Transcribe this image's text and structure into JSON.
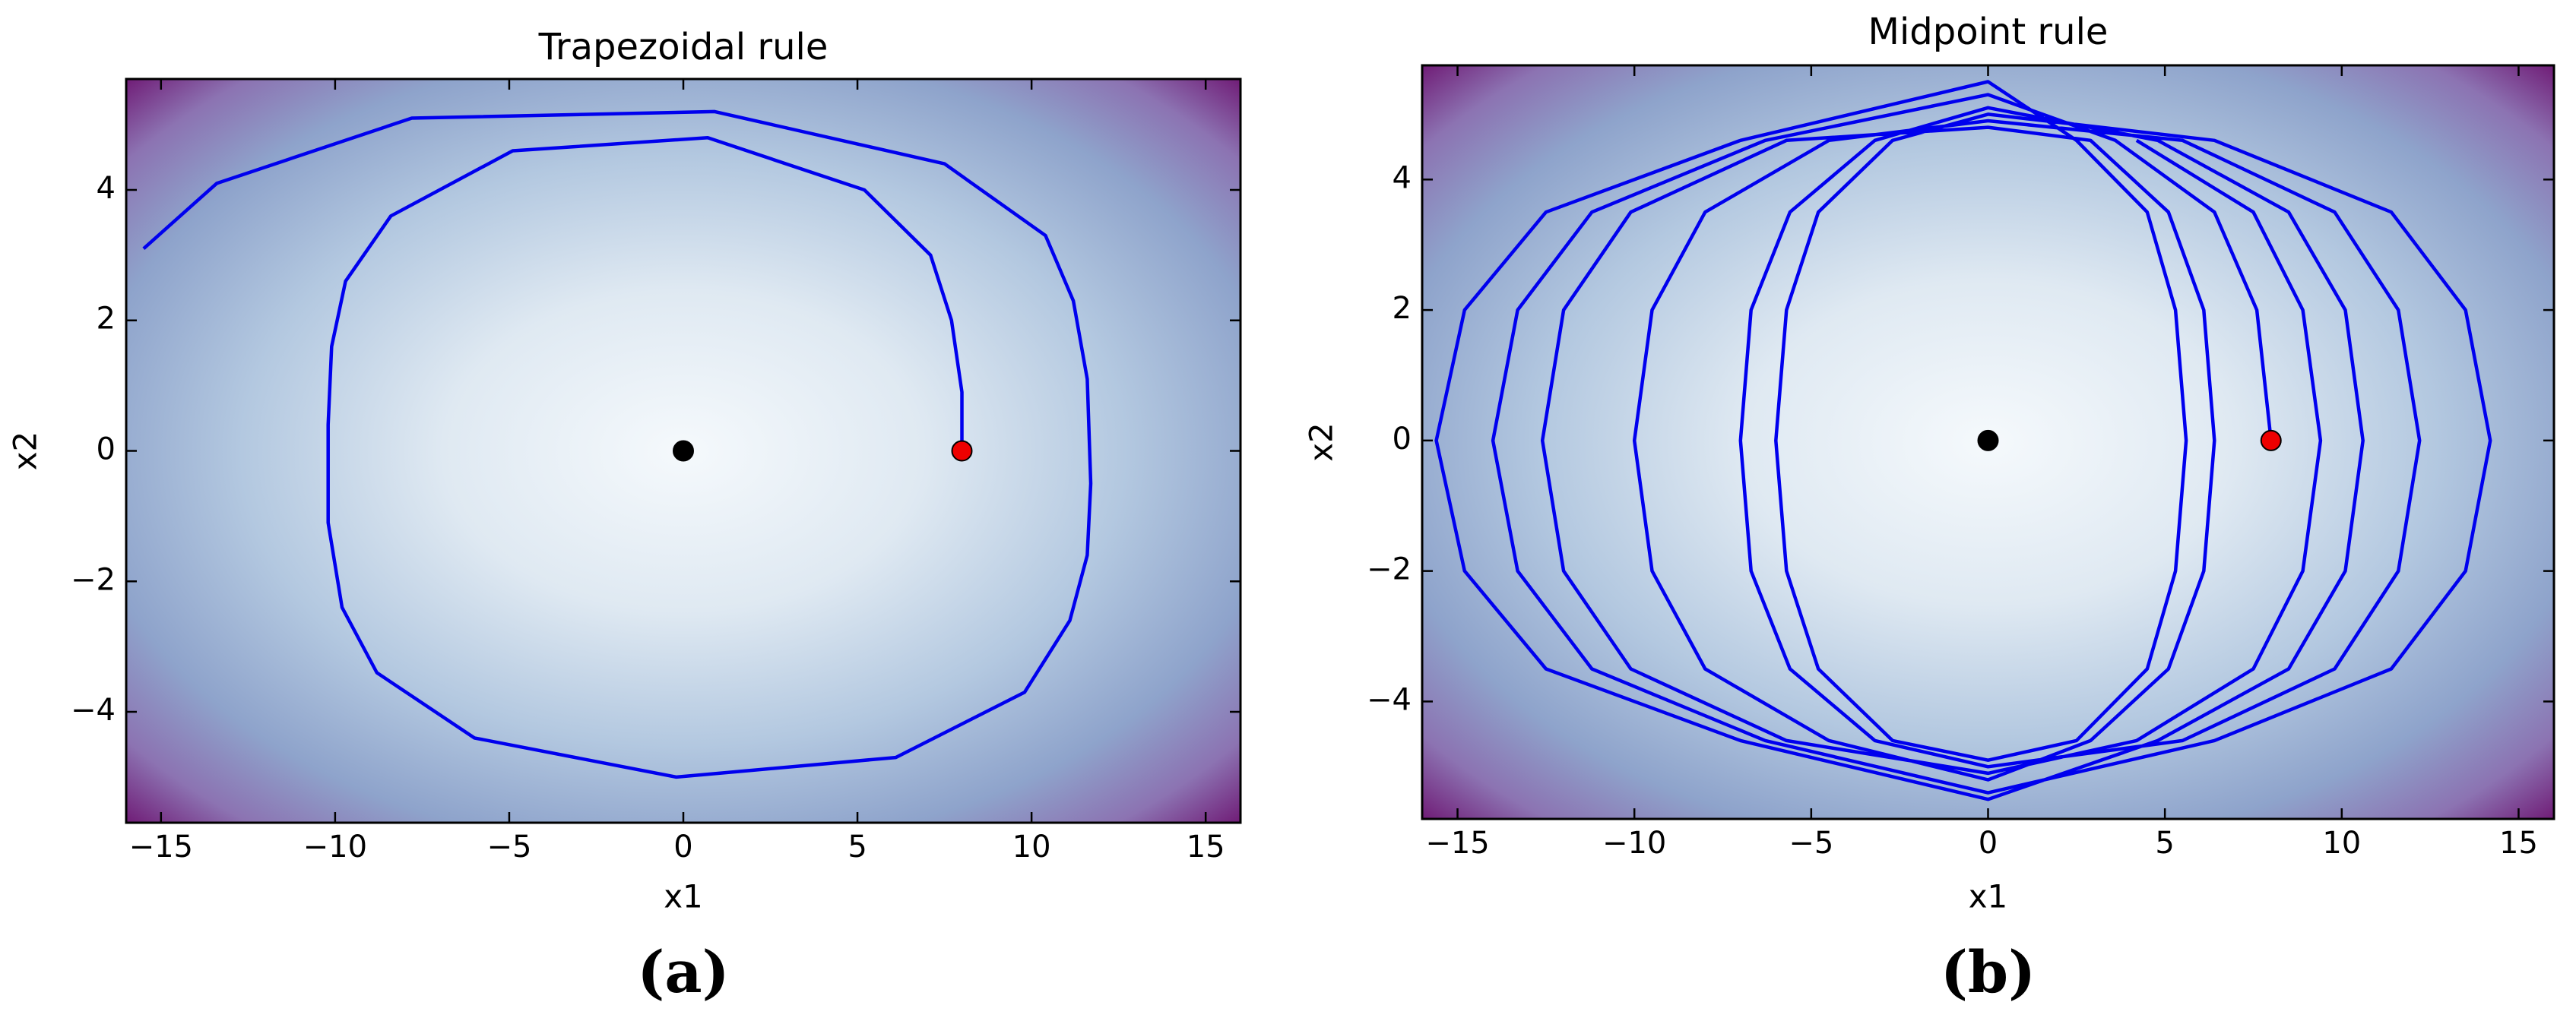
{
  "chart_data": [
    {
      "type": "line",
      "title": "Trapezoidal rule",
      "xlabel": "x1",
      "ylabel": "x2",
      "caption": "(a)",
      "xlim": [
        -16,
        16
      ],
      "ylim": [
        -5.7,
        5.7
      ],
      "xticks": [
        {
          "value": -15,
          "label": "−15"
        },
        {
          "value": -10,
          "label": "−10"
        },
        {
          "value": -5,
          "label": "−5"
        },
        0,
        5,
        10,
        15
      ],
      "yticks": [
        {
          "value": -4,
          "label": "−4"
        },
        {
          "value": -2,
          "label": "−2"
        },
        0,
        2,
        4
      ],
      "x": [
        -15.5,
        -13.4,
        -7.8,
        0.9,
        7.5,
        10.4,
        11.2,
        11.6,
        11.7,
        11.6,
        11.1,
        9.8,
        6.1,
        -0.2,
        -6.0,
        -8.8,
        -9.8,
        -10.2,
        -10.2,
        -10.1,
        -9.7,
        -8.4,
        -4.9,
        0.7,
        5.2,
        7.1,
        7.7,
        8.0,
        8.0
      ],
      "series": [
        {
          "color": "#0000ee",
          "values": [
            3.1,
            4.1,
            5.1,
            5.2,
            4.4,
            3.3,
            2.3,
            1.1,
            -0.5,
            -1.6,
            -2.6,
            -3.7,
            -4.7,
            -5.0,
            -4.4,
            -3.4,
            -2.4,
            -1.1,
            0.4,
            1.6,
            2.6,
            3.6,
            4.6,
            4.8,
            4.0,
            3.0,
            2.0,
            0.9,
            0
          ]
        }
      ],
      "points": [
        {
          "x": 0,
          "y": 0,
          "color": "#000000"
        },
        {
          "x": 8,
          "y": 0,
          "color": "#ee0000"
        }
      ]
    },
    {
      "type": "line",
      "title": "Midpoint rule",
      "xlabel": "x1",
      "ylabel": "x2",
      "caption": "(b)",
      "xlim": [
        -16,
        16
      ],
      "ylim": [
        -5.8,
        5.75
      ],
      "xticks": [
        {
          "value": -15,
          "label": "−15"
        },
        {
          "value": -10,
          "label": "−10"
        },
        {
          "value": -5,
          "label": "−5"
        },
        0,
        5,
        10,
        15
      ],
      "yticks": [
        {
          "value": -4,
          "label": "−4"
        },
        {
          "value": -2,
          "label": "−2"
        },
        0,
        2,
        4
      ],
      "x": [
        8,
        7.6,
        6.4,
        3.6,
        0,
        -6.3,
        -11.2,
        -13.3,
        -14,
        -13.3,
        -11.2,
        -6.3,
        0,
        6.4,
        11.4,
        13.5,
        14.2,
        13.5,
        11.4,
        6.4,
        0,
        -2.7,
        -4.8,
        -5.7,
        -6,
        -5.7,
        -4.8,
        -2.7,
        0,
        2.5,
        4.5,
        5.3,
        5.6,
        5.3,
        4.5,
        2.5,
        0,
        -7.0,
        -12.5,
        -14.8,
        -15.6,
        -14.8,
        -12.5,
        -7.0,
        0,
        4.8,
        8.5,
        10.1,
        10.6,
        10.1,
        8.5,
        4.8,
        0,
        -3.2,
        -5.6,
        -6.7,
        -7,
        -6.7,
        -5.6,
        -3.2,
        0,
        5.5,
        9.8,
        11.6,
        12.2,
        11.6,
        9.8,
        5.5,
        0,
        -4.5,
        -8,
        -9.5,
        -10,
        -9.5,
        -8,
        -4.5,
        0,
        2.9,
        5.1,
        6.1,
        6.4,
        6.1,
        5.1,
        2.9,
        0,
        -5.7,
        -10.1,
        -12,
        -12.6,
        -12,
        -10.1,
        -5.7,
        0,
        4.2,
        7.5,
        8.9,
        9.4,
        8.9,
        7.5,
        4.2
      ],
      "series": [
        {
          "color": "#0000ee",
          "values": [
            0,
            2,
            3.5,
            4.6,
            5.3,
            4.6,
            3.5,
            2,
            0,
            -2,
            -3.5,
            -4.6,
            -5.4,
            -4.6,
            -3.5,
            -2,
            0,
            2,
            3.5,
            4.6,
            5.0,
            4.6,
            3.5,
            2,
            0,
            -2,
            -3.5,
            -4.6,
            -4.9,
            -4.6,
            -3.5,
            -2,
            0,
            2,
            3.5,
            4.6,
            5.5,
            4.6,
            3.5,
            2,
            0,
            -2,
            -3.5,
            -4.6,
            -5.5,
            -4.6,
            -3.5,
            -2,
            0,
            2,
            3.5,
            4.6,
            5.1,
            4.6,
            3.5,
            2,
            0,
            -2,
            -3.5,
            -4.6,
            -5.0,
            -4.6,
            -3.5,
            -2,
            0,
            2,
            3.5,
            4.6,
            4.9,
            4.6,
            3.5,
            2,
            0,
            -2,
            -3.5,
            -4.6,
            -5.2,
            -4.6,
            -3.5,
            -2,
            0,
            2,
            3.5,
            4.6,
            4.8,
            4.6,
            3.5,
            2,
            0,
            -2,
            -3.5,
            -4.6,
            -5.1,
            -4.6,
            -3.5,
            -2,
            0,
            2,
            3.5,
            4.6
          ]
        }
      ],
      "points": [
        {
          "x": 0,
          "y": 0,
          "color": "#000000"
        },
        {
          "x": 8,
          "y": 0,
          "color": "#ee0000"
        }
      ]
    }
  ]
}
